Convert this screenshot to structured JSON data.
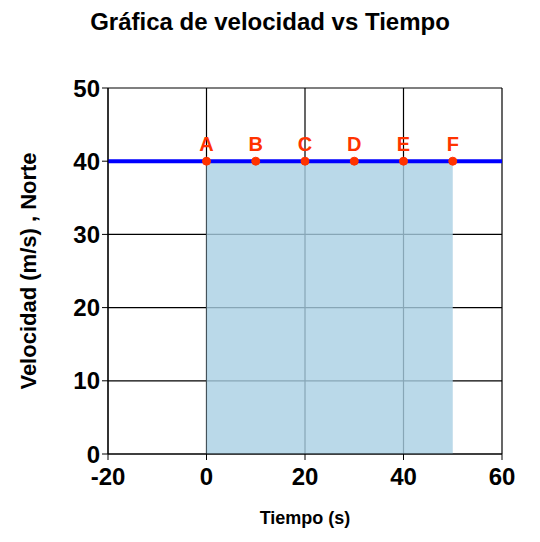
{
  "chart_data": {
    "type": "line",
    "title": "Gráfica de velocidad vs Tiempo",
    "x_label": "Tiempo (s)",
    "y_label": "Velocidad (m/s) , Norte",
    "x": [
      -20,
      0,
      10,
      20,
      30,
      40,
      50,
      60
    ],
    "values": [
      40,
      40,
      40,
      40,
      40,
      40,
      40,
      40
    ],
    "point_labels": [
      null,
      "A",
      "B",
      "C",
      "D",
      "E",
      "F",
      null
    ],
    "color": "#0000ff",
    "marker": "circle",
    "label_color": "#ff3300",
    "area": {
      "x": [
        0,
        50
      ],
      "values": [
        40,
        40
      ],
      "color": "#a9cfe3"
    },
    "xlim": [
      -20,
      60
    ],
    "xticks": [
      -20,
      0,
      20,
      40,
      60
    ],
    "ylim": [
      0,
      50
    ],
    "yticks": [
      0,
      10,
      20,
      30,
      40,
      50
    ],
    "grid": true
  }
}
